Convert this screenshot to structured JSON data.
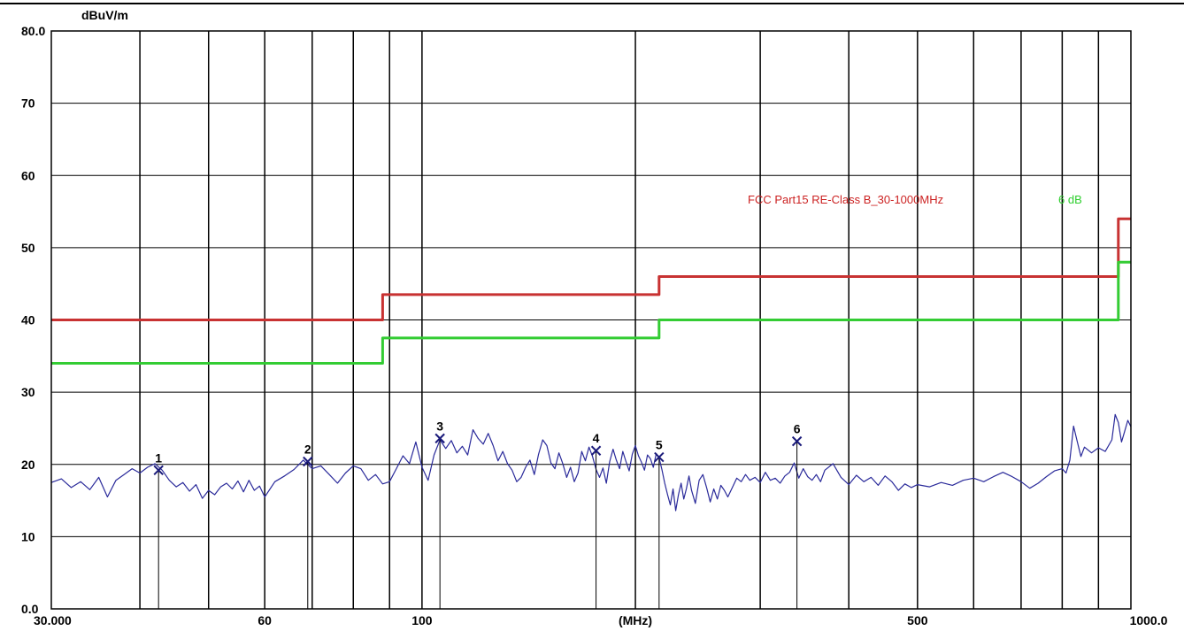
{
  "chart_data": {
    "type": "line",
    "title": "",
    "ylabel": "dBuV/m",
    "xlabel": "(MHz)",
    "x_scale": "log",
    "xlim": [
      30,
      1000
    ],
    "ylim": [
      0,
      80
    ],
    "y_ticks": [
      {
        "value": 80,
        "label": "80.0"
      },
      {
        "value": 70,
        "label": "70"
      },
      {
        "value": 60,
        "label": "60"
      },
      {
        "value": 50,
        "label": "50"
      },
      {
        "value": 40,
        "label": "40"
      },
      {
        "value": 30,
        "label": "30"
      },
      {
        "value": 20,
        "label": "20"
      },
      {
        "value": 10,
        "label": "10"
      },
      {
        "value": 0,
        "label": "0.0"
      }
    ],
    "x_tick_labels": [
      {
        "value": 30,
        "label": "30.000"
      },
      {
        "value": 60,
        "label": "60"
      },
      {
        "value": 100,
        "label": "100"
      },
      {
        "value": 200,
        "label": "(MHz)"
      },
      {
        "value": 500,
        "label": "500"
      },
      {
        "value": 1000,
        "label": "1000.0"
      }
    ],
    "x_gridlines": [
      40,
      50,
      60,
      70,
      80,
      90,
      100,
      200,
      300,
      400,
      500,
      600,
      700,
      800,
      900
    ],
    "grid": true,
    "limit_labels": {
      "red": "FCC Part15 RE-Class B_30-1000MHz",
      "green": "6 dB"
    },
    "series": [
      {
        "color": "#c83232",
        "step": true,
        "points": [
          [
            30,
            40
          ],
          [
            88,
            40
          ],
          [
            88,
            43.5
          ],
          [
            216,
            43.5
          ],
          [
            216,
            46
          ],
          [
            960,
            46
          ],
          [
            960,
            54
          ],
          [
            1000,
            54
          ]
        ]
      },
      {
        "color": "#33cc33",
        "step": true,
        "points": [
          [
            30,
            34
          ],
          [
            88,
            34
          ],
          [
            88,
            37.5
          ],
          [
            216,
            37.5
          ],
          [
            216,
            40
          ],
          [
            960,
            40
          ],
          [
            960,
            48
          ],
          [
            1000,
            48
          ]
        ]
      },
      {
        "color": "#2a2a9a",
        "step": false,
        "points": [
          [
            30,
            17.5
          ],
          [
            31,
            18
          ],
          [
            32,
            16.8
          ],
          [
            33,
            17.6
          ],
          [
            34,
            16.5
          ],
          [
            35,
            18.2
          ],
          [
            36,
            15.5
          ],
          [
            37,
            17.8
          ],
          [
            38,
            18.6
          ],
          [
            39,
            19.4
          ],
          [
            40,
            18.8
          ],
          [
            41,
            19.6
          ],
          [
            42,
            20.1
          ],
          [
            43,
            19.2
          ],
          [
            44,
            17.8
          ],
          [
            45,
            16.9
          ],
          [
            46,
            17.5
          ],
          [
            47,
            16.3
          ],
          [
            48,
            17.2
          ],
          [
            49,
            15.3
          ],
          [
            50,
            16.4
          ],
          [
            51,
            15.8
          ],
          [
            52,
            16.9
          ],
          [
            53,
            17.4
          ],
          [
            54,
            16.6
          ],
          [
            55,
            17.7
          ],
          [
            56,
            16.2
          ],
          [
            57,
            17.8
          ],
          [
            58,
            16.4
          ],
          [
            59,
            17.0
          ],
          [
            60,
            15.5
          ],
          [
            62,
            17.6
          ],
          [
            64,
            18.4
          ],
          [
            66,
            19.3
          ],
          [
            68,
            20.6
          ],
          [
            69,
            20.0
          ],
          [
            70,
            19.4
          ],
          [
            72,
            19.8
          ],
          [
            74,
            18.6
          ],
          [
            76,
            17.4
          ],
          [
            78,
            18.8
          ],
          [
            80,
            19.8
          ],
          [
            82,
            19.4
          ],
          [
            84,
            17.8
          ],
          [
            86,
            18.6
          ],
          [
            88,
            17.3
          ],
          [
            90,
            17.6
          ],
          [
            92,
            19.4
          ],
          [
            94,
            21.2
          ],
          [
            96,
            20.1
          ],
          [
            98,
            23.1
          ],
          [
            100,
            19.6
          ],
          [
            102,
            17.8
          ],
          [
            104,
            21.3
          ],
          [
            106,
            23.4
          ],
          [
            108,
            22.2
          ],
          [
            110,
            23.3
          ],
          [
            112,
            21.6
          ],
          [
            114,
            22.5
          ],
          [
            116,
            21.3
          ],
          [
            118,
            24.8
          ],
          [
            120,
            23.6
          ],
          [
            122,
            22.8
          ],
          [
            124,
            24.3
          ],
          [
            126,
            22.6
          ],
          [
            128,
            20.5
          ],
          [
            130,
            21.8
          ],
          [
            132,
            20.1
          ],
          [
            134,
            19.2
          ],
          [
            136,
            17.6
          ],
          [
            138,
            18.2
          ],
          [
            140,
            19.6
          ],
          [
            142,
            20.6
          ],
          [
            144,
            18.6
          ],
          [
            146,
            21.4
          ],
          [
            148,
            23.4
          ],
          [
            150,
            22.6
          ],
          [
            152,
            20.2
          ],
          [
            154,
            19.4
          ],
          [
            156,
            21.6
          ],
          [
            158,
            20.1
          ],
          [
            160,
            18.2
          ],
          [
            162,
            19.6
          ],
          [
            164,
            17.6
          ],
          [
            166,
            18.8
          ],
          [
            168,
            21.8
          ],
          [
            170,
            20.5
          ],
          [
            172,
            22.4
          ],
          [
            174,
            21.1
          ],
          [
            176,
            19.3
          ],
          [
            178,
            18.2
          ],
          [
            180,
            19.5
          ],
          [
            182,
            17.4
          ],
          [
            184,
            20.4
          ],
          [
            186,
            22.1
          ],
          [
            188,
            20.6
          ],
          [
            190,
            19.4
          ],
          [
            192,
            21.8
          ],
          [
            194,
            20.4
          ],
          [
            196,
            19.1
          ],
          [
            198,
            21.4
          ],
          [
            200,
            22.6
          ],
          [
            202,
            21.2
          ],
          [
            204,
            20.3
          ],
          [
            206,
            19.2
          ],
          [
            208,
            21.3
          ],
          [
            210,
            20.8
          ],
          [
            212,
            19.6
          ],
          [
            214,
            21.5
          ],
          [
            216,
            20.9
          ],
          [
            218,
            19.3
          ],
          [
            220,
            17.4
          ],
          [
            222,
            15.8
          ],
          [
            224,
            14.4
          ],
          [
            226,
            16.6
          ],
          [
            228,
            13.6
          ],
          [
            230,
            15.8
          ],
          [
            232,
            17.4
          ],
          [
            234,
            15.2
          ],
          [
            236,
            16.6
          ],
          [
            238,
            18.4
          ],
          [
            240,
            16.4
          ],
          [
            243,
            14.6
          ],
          [
            246,
            17.8
          ],
          [
            249,
            18.6
          ],
          [
            252,
            16.8
          ],
          [
            255,
            14.8
          ],
          [
            258,
            16.6
          ],
          [
            261,
            15.2
          ],
          [
            264,
            17.1
          ],
          [
            267,
            16.4
          ],
          [
            270,
            15.5
          ],
          [
            274,
            16.8
          ],
          [
            278,
            18.1
          ],
          [
            282,
            17.6
          ],
          [
            286,
            18.6
          ],
          [
            290,
            17.8
          ],
          [
            295,
            18.2
          ],
          [
            300,
            17.5
          ],
          [
            305,
            18.9
          ],
          [
            310,
            17.8
          ],
          [
            315,
            18.1
          ],
          [
            320,
            17.4
          ],
          [
            325,
            18.4
          ],
          [
            330,
            18.9
          ],
          [
            335,
            20.2
          ],
          [
            340,
            18.1
          ],
          [
            345,
            19.4
          ],
          [
            350,
            18.3
          ],
          [
            355,
            17.8
          ],
          [
            360,
            18.6
          ],
          [
            365,
            17.6
          ],
          [
            370,
            19.2
          ],
          [
            380,
            20.1
          ],
          [
            390,
            18.2
          ],
          [
            400,
            17.2
          ],
          [
            410,
            18.5
          ],
          [
            420,
            17.6
          ],
          [
            430,
            18.2
          ],
          [
            440,
            17.1
          ],
          [
            450,
            18.4
          ],
          [
            460,
            17.6
          ],
          [
            470,
            16.4
          ],
          [
            480,
            17.3
          ],
          [
            490,
            16.8
          ],
          [
            500,
            17.2
          ],
          [
            520,
            16.9
          ],
          [
            540,
            17.5
          ],
          [
            560,
            17.1
          ],
          [
            580,
            17.8
          ],
          [
            600,
            18.1
          ],
          [
            620,
            17.6
          ],
          [
            640,
            18.3
          ],
          [
            660,
            18.9
          ],
          [
            680,
            18.3
          ],
          [
            700,
            17.6
          ],
          [
            720,
            16.7
          ],
          [
            740,
            17.4
          ],
          [
            760,
            18.3
          ],
          [
            780,
            19.1
          ],
          [
            800,
            19.4
          ],
          [
            810,
            18.8
          ],
          [
            820,
            20.6
          ],
          [
            830,
            25.3
          ],
          [
            840,
            23.2
          ],
          [
            850,
            21.1
          ],
          [
            860,
            22.4
          ],
          [
            880,
            21.6
          ],
          [
            900,
            22.3
          ],
          [
            920,
            21.8
          ],
          [
            940,
            23.4
          ],
          [
            950,
            26.9
          ],
          [
            960,
            25.8
          ],
          [
            970,
            23.1
          ],
          [
            980,
            24.6
          ],
          [
            990,
            26.1
          ],
          [
            1000,
            25.2
          ]
        ]
      }
    ],
    "markers": [
      {
        "label": "1",
        "x": 42.5,
        "y": 19.2
      },
      {
        "label": "2",
        "x": 69,
        "y": 20.4
      },
      {
        "label": "3",
        "x": 106,
        "y": 23.6
      },
      {
        "label": "4",
        "x": 176,
        "y": 21.9
      },
      {
        "label": "5",
        "x": 216,
        "y": 21.0
      },
      {
        "label": "6",
        "x": 338,
        "y": 23.2
      }
    ]
  }
}
